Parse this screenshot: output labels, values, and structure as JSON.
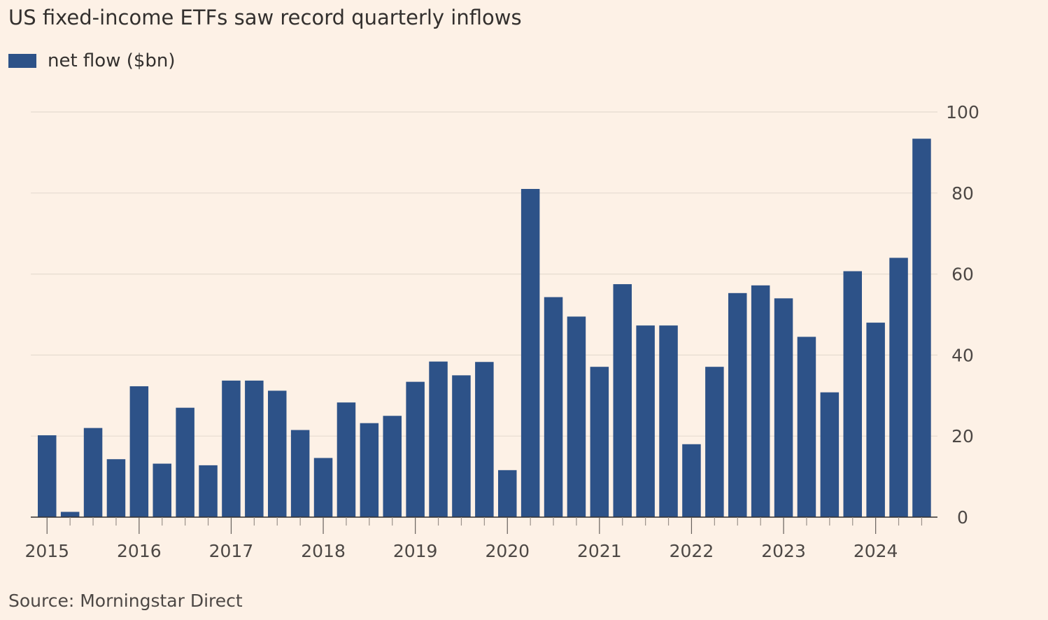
{
  "title": "US fixed-income ETFs saw record quarterly inflows",
  "legend": {
    "label": "net flow ($bn)",
    "color": "#2d5288"
  },
  "source": "Source: Morningstar Direct",
  "colors": {
    "background": "#fdf1e6",
    "bar": "#2d5288",
    "grid": "#e6dbd0",
    "axis": "#33302e",
    "text": "#33302e"
  },
  "chart_data": {
    "type": "bar",
    "series": [
      {
        "name": "net flow ($bn)",
        "values": [
          20.2,
          1.3,
          22,
          14.3,
          32.3,
          13.2,
          27,
          12.8,
          33.7,
          33.7,
          31.2,
          21.5,
          14.6,
          28.3,
          23.2,
          25,
          33.4,
          38.4,
          35,
          38.3,
          11.6,
          81,
          54.3,
          49.5,
          37.1,
          57.5,
          47.3,
          47.3,
          18,
          37.1,
          55.3,
          57.2,
          54,
          44.5,
          30.8,
          60.7,
          48,
          64,
          93.4
        ]
      }
    ],
    "x_tick_labels": [
      "2015",
      "2016",
      "2017",
      "2018",
      "2019",
      "2020",
      "2021",
      "2022",
      "2023",
      "2024"
    ],
    "y_tick_labels": [
      "0",
      "20",
      "40",
      "60",
      "80",
      "100"
    ],
    "ylim": [
      0,
      100
    ],
    "y_axis_side": "right",
    "grid": true,
    "legend_position": "top-left",
    "xlabel": "",
    "ylabel": ""
  }
}
